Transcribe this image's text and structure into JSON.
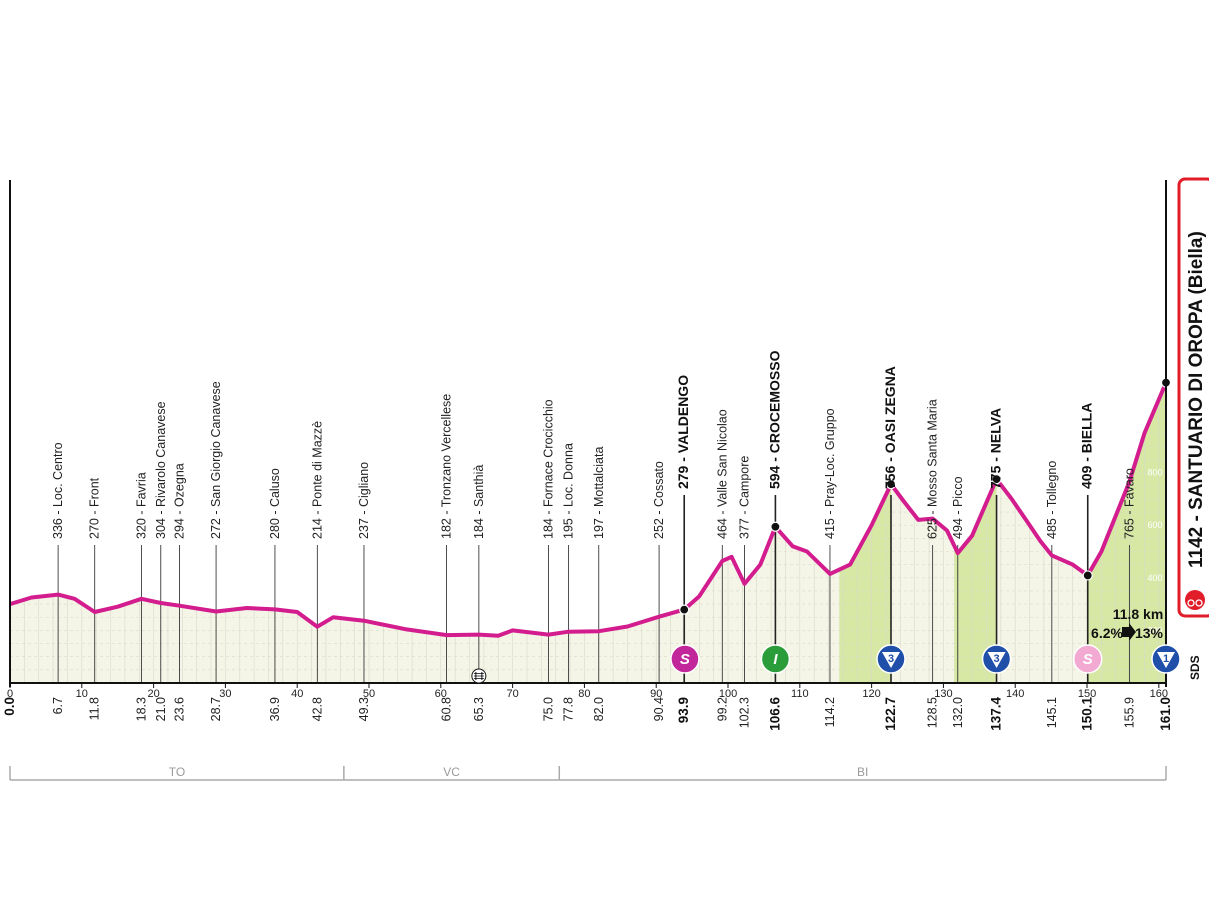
{
  "chart_data": {
    "type": "area",
    "title": "",
    "xlabel": "",
    "ylabel": "",
    "xlim": [
      0,
      161
    ],
    "ylim": [
      0,
      1200
    ],
    "x_ticks": [
      0,
      10,
      20,
      30,
      40,
      50,
      60,
      70,
      80,
      90,
      100,
      110,
      120,
      130,
      140,
      150,
      160
    ],
    "y_ticks": [
      200,
      400,
      600,
      800
    ],
    "series": [
      {
        "x": [
          0,
          3,
          6.7,
          9,
          11.8,
          15,
          18.3,
          21.0,
          23.6,
          28.7,
          33,
          36.9,
          40,
          42.8,
          45,
          49.3,
          55,
          60.8,
          65.3,
          68,
          70,
          75.0,
          77.8,
          82.0,
          86,
          90.4,
          93.9,
          96,
          99.2,
          100.5,
          102.3,
          104.5,
          106.6,
          109,
          111,
          114.2,
          117,
          120,
          122.7,
          124.5,
          126.5,
          128.5,
          130.5,
          132.0,
          134,
          137.4,
          139.5,
          141.5,
          143.5,
          145.1,
          148,
          150.1,
          152,
          155.9,
          158,
          161.0
        ],
        "values": [
          300,
          325,
          336,
          320,
          270,
          290,
          320,
          304,
          294,
          272,
          285,
          280,
          270,
          214,
          250,
          237,
          205,
          182,
          184,
          180,
          200,
          184,
          195,
          197,
          215,
          252,
          279,
          330,
          464,
          480,
          377,
          450,
          594,
          520,
          500,
          415,
          450,
          600,
          756,
          690,
          620,
          625,
          580,
          494,
          560,
          775,
          700,
          620,
          540,
          485,
          450,
          409,
          500,
          765,
          950,
          1142
        ]
      }
    ],
    "waypoints": [
      {
        "km": "0.0",
        "name": "",
        "major": true,
        "x": 0
      },
      {
        "km": "6.7",
        "name": "336 - Loc. Centro",
        "x": 6.7,
        "y": 336
      },
      {
        "km": "11.8",
        "name": "270 - Front",
        "x": 11.8,
        "y": 270
      },
      {
        "km": "18.3",
        "name": "320 - Favria",
        "x": 18.3,
        "y": 320
      },
      {
        "km": "21.0",
        "name": "304 - Rivarolo Canavese",
        "x": 21.0,
        "y": 304
      },
      {
        "km": "23.6",
        "name": "294 - Ozegna",
        "x": 23.6,
        "y": 294
      },
      {
        "km": "28.7",
        "name": "272 - San Giorgio Canavese",
        "x": 28.7,
        "y": 272
      },
      {
        "km": "36.9",
        "name": "280 - Caluso",
        "x": 36.9,
        "y": 280
      },
      {
        "km": "42.8",
        "name": "214 - Ponte di Mazzè",
        "x": 42.8,
        "y": 214
      },
      {
        "km": "49.3",
        "name": "237 - Cigliano",
        "x": 49.3,
        "y": 237
      },
      {
        "km": "60.8",
        "name": "182 - Tronzano Vercellese",
        "x": 60.8,
        "y": 182
      },
      {
        "km": "65.3",
        "name": "184 - Santhià",
        "x": 65.3,
        "y": 184
      },
      {
        "km": "75.0",
        "name": "184 - Fornace Crocicchio",
        "x": 75.0,
        "y": 184
      },
      {
        "km": "77.8",
        "name": "195 - Loc. Donna",
        "x": 77.8,
        "y": 195
      },
      {
        "km": "82.0",
        "name": "197 - Mottalciata",
        "x": 82.0,
        "y": 197
      },
      {
        "km": "90.4",
        "name": "252 - Cossato",
        "x": 90.4,
        "y": 252
      },
      {
        "km": "93.9",
        "name": "279 - VALDENGO",
        "major": true,
        "x": 93.9,
        "y": 279
      },
      {
        "km": "99.2",
        "name": "464 - Valle San Nicolao",
        "x": 99.2,
        "y": 464
      },
      {
        "km": "102.3",
        "name": "377 - Campore",
        "x": 102.3,
        "y": 377
      },
      {
        "km": "106.6",
        "name": "594 - CROCEMOSSO",
        "major": true,
        "x": 106.6,
        "y": 594
      },
      {
        "km": "114.2",
        "name": "415 - Pray-Loc. Gruppo",
        "x": 114.2,
        "y": 415
      },
      {
        "km": "122.7",
        "name": "756 - OASI ZEGNA",
        "major": true,
        "x": 122.7,
        "y": 756
      },
      {
        "km": "128.5",
        "name": "625 - Mosso Santa Maria",
        "x": 128.5,
        "y": 625
      },
      {
        "km": "132.0",
        "name": "494 - Picco",
        "x": 132.0,
        "y": 494
      },
      {
        "km": "137.4",
        "name": "775 - NELVA",
        "major": true,
        "x": 137.4,
        "y": 775
      },
      {
        "km": "145.1",
        "name": "485 - Tollegno",
        "x": 145.1,
        "y": 485
      },
      {
        "km": "150.1",
        "name": "409 - BIELLA",
        "major": true,
        "x": 150.1,
        "y": 409
      },
      {
        "km": "155.9",
        "name": "765 - Favaro",
        "x": 155.9,
        "y": 765
      },
      {
        "km": "161.0",
        "name": "",
        "major": true,
        "x": 161.0
      }
    ],
    "climbs": [
      {
        "start": 115.5,
        "end": 122.7
      },
      {
        "start": 131.5,
        "end": 137.4
      },
      {
        "start": 150.1,
        "end": 161.0
      }
    ],
    "badges": [
      {
        "x": 94.0,
        "letter": "S",
        "color": "#c2269b",
        "shape": "circle",
        "icon": "sprint-icon"
      },
      {
        "x": 106.6,
        "letter": "I",
        "color": "#2a9d3a",
        "shape": "circle",
        "icon": "intermediate-icon"
      },
      {
        "x": 122.7,
        "letter": "3",
        "color": "#1f4fa8",
        "shape": "triangle",
        "icon": "kom-cat3-icon"
      },
      {
        "x": 137.4,
        "letter": "3",
        "color": "#1f4fa8",
        "shape": "triangle",
        "icon": "kom-cat3-icon"
      },
      {
        "x": 150.1,
        "letter": "S",
        "color": "#f2a9d2",
        "shape": "circle",
        "icon": "sprint-icon"
      },
      {
        "x": 161.0,
        "letter": "1",
        "color": "#1f4fa8",
        "shape": "triangle",
        "icon": "kom-cat1-icon"
      }
    ],
    "railway_km": 65.3,
    "regions": [
      {
        "label": "TO",
        "start": 0,
        "end": 46.5
      },
      {
        "label": "VC",
        "start": 46.5,
        "end": 76.5
      },
      {
        "label": "BI",
        "start": 76.5,
        "end": 161
      }
    ],
    "finish": {
      "label": "1142 - SANTUARIO DI OROPA (Biella)"
    },
    "climb_info": {
      "length": "11.8 km",
      "avg_gradient": "6.2%",
      "max_gradient": "13%"
    },
    "sds_label": "SDS",
    "colors": {
      "profile_line": "#d31c8e",
      "area_fill": "#f4f5e6",
      "climb_fill": "#d6e8a4",
      "finish_red": "#e11d2a"
    }
  }
}
